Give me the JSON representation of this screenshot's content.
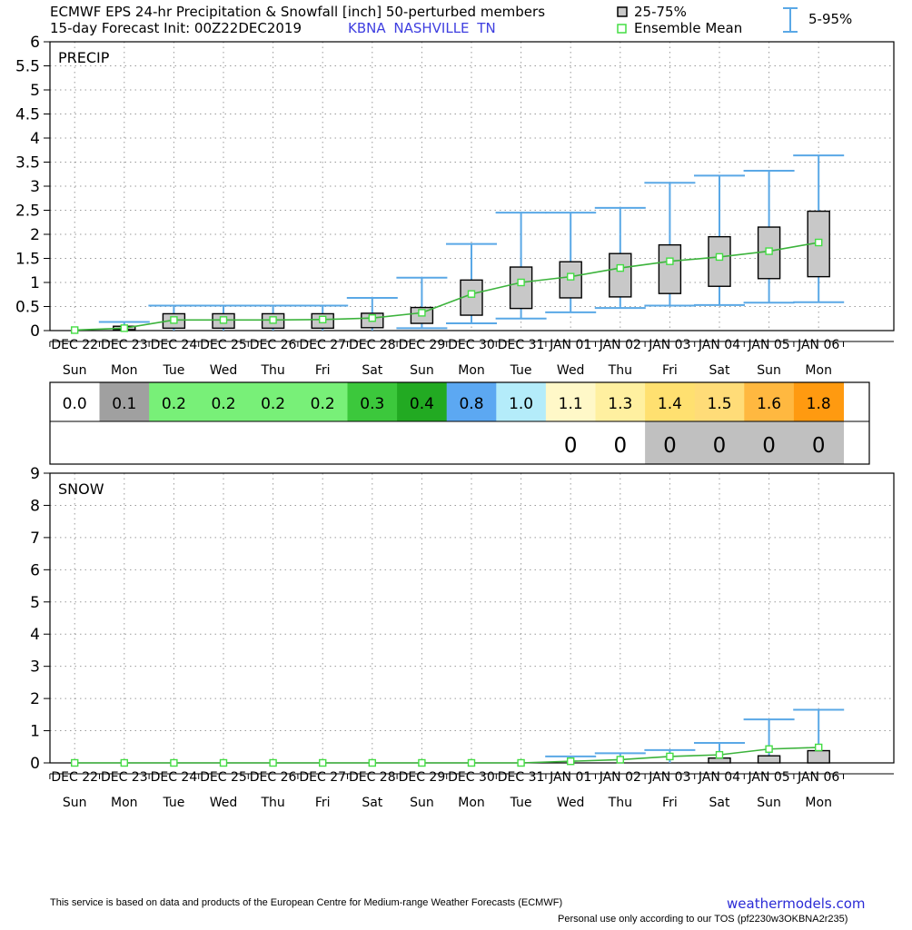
{
  "header": {
    "title_line1": "ECMWF EPS 24-hr Precipitation & Snowfall [inch]  50-perturbed members",
    "title_line2": "15-day Forecast Init: 00Z22DEC2019",
    "station": "KBNA  NASHVILLE      TN",
    "legend_box": "25-75%",
    "legend_mean": "Ensemble Mean",
    "legend_range": "5-95%"
  },
  "colors": {
    "box_fill": "#c8c8c8",
    "whisker": "#5aa8e6",
    "mean_line": "#3cb33c",
    "mean_marker": "#44dd44",
    "grid": "#9a9a9a"
  },
  "chart_data": [
    {
      "type": "box",
      "panel_label": "PRECIP",
      "ylim": [
        0,
        6
      ],
      "yticks": [
        "0",
        "0.5",
        "1",
        "1.5",
        "2",
        "2.5",
        "3",
        "3.5",
        "4",
        "4.5",
        "5",
        "5.5",
        "6"
      ],
      "categories": [
        "DEC 22",
        "DEC 23",
        "DEC 24",
        "DEC 25",
        "DEC 26",
        "DEC 27",
        "DEC 28",
        "DEC 29",
        "DEC 30",
        "DEC 31",
        "JAN 01",
        "JAN 02",
        "JAN 03",
        "JAN 04",
        "JAN 05",
        "JAN 06"
      ],
      "weekdays": [
        "Sun",
        "Mon",
        "Tue",
        "Wed",
        "Thu",
        "Fri",
        "Sat",
        "Sun",
        "Mon",
        "Tue",
        "Wed",
        "Thu",
        "Fri",
        "Sat",
        "Sun",
        "Mon"
      ],
      "p5": [
        0,
        0,
        0,
        0,
        0,
        0,
        0,
        0.05,
        0.15,
        0.25,
        0.38,
        0.47,
        0.52,
        0.53,
        0.58,
        0.59
      ],
      "p25": [
        0,
        0.02,
        0.05,
        0.05,
        0.05,
        0.05,
        0.06,
        0.15,
        0.32,
        0.46,
        0.68,
        0.7,
        0.77,
        0.92,
        1.08,
        1.12
      ],
      "p75": [
        0,
        0.09,
        0.35,
        0.35,
        0.35,
        0.35,
        0.36,
        0.48,
        1.05,
        1.32,
        1.43,
        1.6,
        1.78,
        1.95,
        2.15,
        2.48
      ],
      "p95": [
        0,
        0.18,
        0.52,
        0.52,
        0.52,
        0.52,
        0.68,
        1.1,
        1.8,
        2.45,
        2.45,
        2.55,
        3.07,
        3.22,
        3.32,
        3.64
      ],
      "mean": [
        0.01,
        0.05,
        0.22,
        0.22,
        0.22,
        0.23,
        0.26,
        0.37,
        0.76,
        1.0,
        1.12,
        1.3,
        1.44,
        1.53,
        1.65,
        1.83
      ]
    },
    {
      "type": "box",
      "panel_label": "SNOW",
      "ylim": [
        0,
        9
      ],
      "yticks": [
        "0",
        "1",
        "2",
        "3",
        "4",
        "5",
        "6",
        "7",
        "8",
        "9"
      ],
      "categories": [
        "DEC 22",
        "DEC 23",
        "DEC 24",
        "DEC 25",
        "DEC 26",
        "DEC 27",
        "DEC 28",
        "DEC 29",
        "DEC 30",
        "DEC 31",
        "JAN 01",
        "JAN 02",
        "JAN 03",
        "JAN 04",
        "JAN 05",
        "JAN 06"
      ],
      "weekdays": [
        "Sun",
        "Mon",
        "Tue",
        "Wed",
        "Thu",
        "Fri",
        "Sat",
        "Sun",
        "Mon",
        "Tue",
        "Wed",
        "Thu",
        "Fri",
        "Sat",
        "Sun",
        "Mon"
      ],
      "p5": [
        0,
        0,
        0,
        0,
        0,
        0,
        0,
        0,
        0,
        0,
        0,
        0,
        0,
        0,
        0,
        0
      ],
      "p25": [
        0,
        0,
        0,
        0,
        0,
        0,
        0,
        0,
        0,
        0,
        0,
        0,
        0,
        0,
        0,
        0
      ],
      "p75": [
        0,
        0,
        0,
        0,
        0,
        0,
        0,
        0,
        0,
        0,
        0,
        0,
        0,
        0.15,
        0.22,
        0.38
      ],
      "p95": [
        0,
        0,
        0,
        0,
        0,
        0,
        0,
        0,
        0,
        0,
        0.2,
        0.3,
        0.4,
        0.62,
        1.35,
        1.65
      ],
      "mean": [
        0,
        0,
        0,
        0,
        0,
        0,
        0,
        0,
        0,
        0,
        0.05,
        0.1,
        0.2,
        0.25,
        0.43,
        0.48
      ]
    }
  ],
  "precip_totals": {
    "values": [
      "0.0",
      "0.1",
      "0.2",
      "0.2",
      "0.2",
      "0.2",
      "0.3",
      "0.4",
      "0.8",
      "1.0",
      "1.1",
      "1.3",
      "1.4",
      "1.5",
      "1.6",
      "1.8"
    ],
    "colors": [
      "#ffffff",
      "#a0a0a0",
      "#78f078",
      "#78f078",
      "#78f078",
      "#78f078",
      "#3cc83c",
      "#22aa22",
      "#5ca8f2",
      "#b4ecfa",
      "#fff8c8",
      "#fff0a0",
      "#ffe070",
      "#ffdc78",
      "#ffb840",
      "#ff9a10"
    ]
  },
  "snow_totals": {
    "values": [
      "",
      "",
      "",
      "",
      "",
      "",
      "",
      "",
      "",
      "",
      "0",
      "0",
      "0",
      "0",
      "0",
      "0"
    ],
    "colors": [
      "#ffffff",
      "#ffffff",
      "#ffffff",
      "#ffffff",
      "#ffffff",
      "#ffffff",
      "#ffffff",
      "#ffffff",
      "#ffffff",
      "#ffffff",
      "#ffffff",
      "#ffffff",
      "#c0c0c0",
      "#c0c0c0",
      "#c0c0c0",
      "#c0c0c0"
    ]
  },
  "footer": {
    "disclaimer": "This service is based on data and products of the European Centre for Medium-range Weather Forecasts (ECMWF)",
    "brand": "weathermodels.com",
    "tos": "Personal use only according to our TOS (pf2230w3OKBNA2r235)"
  }
}
